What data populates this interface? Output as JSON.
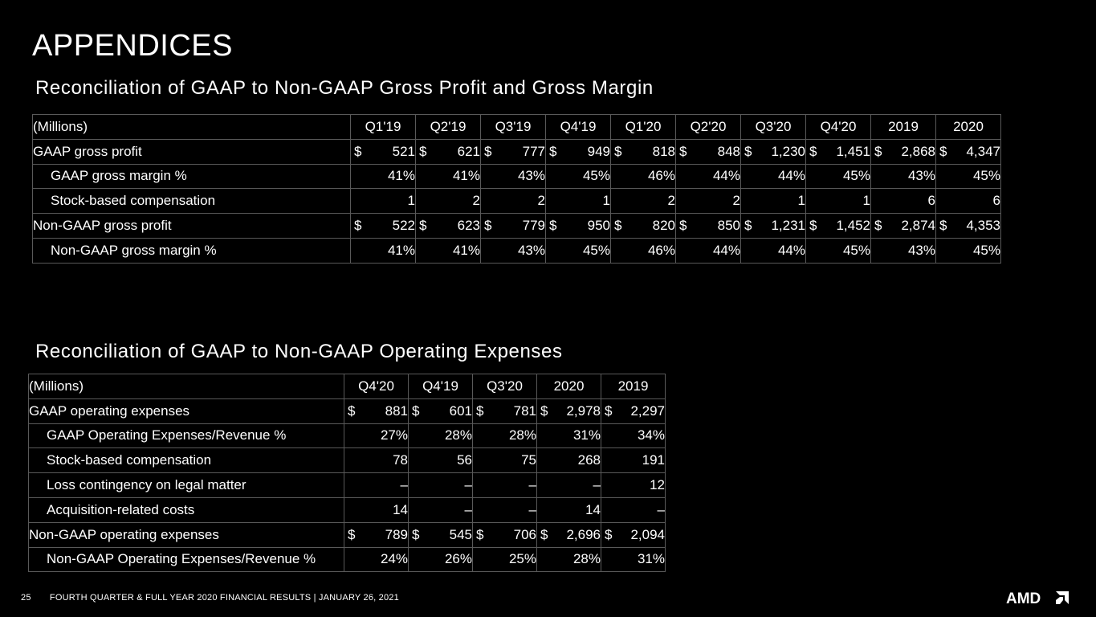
{
  "page": {
    "title": "APPENDICES",
    "section1_title": "Reconciliation of GAAP to Non-GAAP Gross Profit and Gross Margin",
    "section2_title": "Reconciliation of GAAP to Non-GAAP Operating Expenses"
  },
  "table1": {
    "headers": [
      "(Millions)",
      "Q1'19",
      "Q2'19",
      "Q3'19",
      "Q4'19",
      "Q1'20",
      "Q2'20",
      "Q3'20",
      "Q4'20",
      "2019",
      "2020"
    ],
    "rows": [
      {
        "label": "GAAP gross profit",
        "indent": false,
        "dollar": true,
        "values": [
          "521",
          "621",
          "777",
          "949",
          "818",
          "848",
          "1,230",
          "1,451",
          "2,868",
          "4,347"
        ]
      },
      {
        "label": "GAAP gross margin %",
        "indent": true,
        "dollar": false,
        "values": [
          "41%",
          "41%",
          "43%",
          "45%",
          "46%",
          "44%",
          "44%",
          "45%",
          "43%",
          "45%"
        ]
      },
      {
        "label": "Stock-based compensation",
        "indent": true,
        "dollar": false,
        "values": [
          "1",
          "2",
          "2",
          "1",
          "2",
          "2",
          "1",
          "1",
          "6",
          "6"
        ]
      },
      {
        "label": "Non-GAAP gross profit",
        "indent": false,
        "dollar": true,
        "values": [
          "522",
          "623",
          "779",
          "950",
          "820",
          "850",
          "1,231",
          "1,452",
          "2,874",
          "4,353"
        ]
      },
      {
        "label": "Non-GAAP gross margin %",
        "indent": true,
        "dollar": false,
        "values": [
          "41%",
          "41%",
          "43%",
          "45%",
          "46%",
          "44%",
          "44%",
          "45%",
          "43%",
          "45%"
        ]
      }
    ]
  },
  "table2": {
    "headers": [
      "(Millions)",
      "Q4'20",
      "Q4'19",
      "Q3'20",
      "2020",
      "2019"
    ],
    "rows": [
      {
        "label": "GAAP operating expenses",
        "indent": false,
        "dollar": true,
        "values": [
          "881",
          "601",
          "781",
          "2,978",
          "2,297"
        ]
      },
      {
        "label": "GAAP Operating Expenses/Revenue %",
        "indent": true,
        "dollar": false,
        "values": [
          "27%",
          "28%",
          "28%",
          "31%",
          "34%"
        ]
      },
      {
        "label": "Stock-based compensation",
        "indent": true,
        "dollar": false,
        "values": [
          "78",
          "56",
          "75",
          "268",
          "191"
        ]
      },
      {
        "label": "Loss contingency on legal matter",
        "indent": true,
        "dollar": false,
        "values": [
          "–",
          "–",
          "–",
          "–",
          "12"
        ]
      },
      {
        "label": "Acquisition-related costs",
        "indent": true,
        "dollar": false,
        "values": [
          "14",
          "–",
          "–",
          "14",
          "–"
        ]
      },
      {
        "label": "Non-GAAP operating expenses",
        "indent": false,
        "dollar": true,
        "values": [
          "789",
          "545",
          "706",
          "2,696",
          "2,094"
        ]
      },
      {
        "label": "Non-GAAP Operating Expenses/Revenue %",
        "indent": true,
        "dollar": false,
        "values": [
          "24%",
          "26%",
          "25%",
          "28%",
          "31%"
        ]
      }
    ]
  },
  "currency_symbol": "$",
  "footer": {
    "page_number": "25",
    "text": "FOURTH QUARTER & FULL YEAR 2020 FINANCIAL RESULTS   |   JANUARY 26, 2021",
    "logo": "AMD"
  },
  "colors": {
    "background": "#000000",
    "text": "#ffffff",
    "grid": "#595959"
  }
}
